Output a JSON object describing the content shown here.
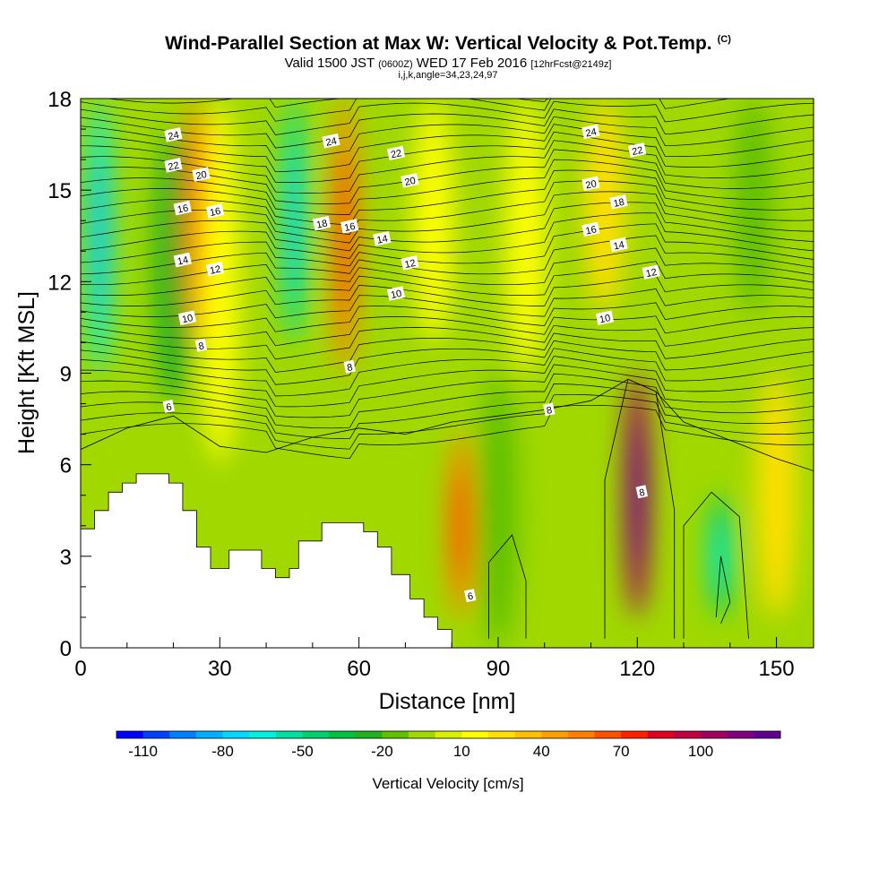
{
  "title": {
    "main": "Wind-Parallel Section at Max W: Vertical Velocity & Pot.Temp.",
    "corner": "(C)",
    "valid_prefix": "Valid 1500 JST",
    "utc": "(0600Z)",
    "valid_date": "WED 17 Feb 2016",
    "forecast": "[12hrFcst@2149z]",
    "indices": "i,j,k,angle=34,23,24,97"
  },
  "chart_data": {
    "type": "heatmap",
    "xlabel": "Distance [nm]",
    "ylabel": "Height [Kft MSL]",
    "xlim": [
      0,
      158
    ],
    "ylim": [
      0,
      18
    ],
    "xticks": [
      0,
      30,
      60,
      90,
      120,
      150
    ],
    "yticks": [
      0,
      3,
      6,
      9,
      12,
      15,
      18
    ],
    "colorbar": {
      "label": "Vertical Velocity [cm/s]",
      "tick_labels": [
        "-110",
        "-80",
        "-50",
        "-20",
        "10",
        "40",
        "70",
        "100"
      ],
      "colors": [
        "#0000ff",
        "#0040ff",
        "#0080ff",
        "#00b0ff",
        "#00d8ff",
        "#00f0e0",
        "#00e0a0",
        "#00d070",
        "#00c040",
        "#20b020",
        "#60c000",
        "#a0d800",
        "#d8f000",
        "#ffff00",
        "#ffe000",
        "#ffc000",
        "#ffa000",
        "#ff8000",
        "#ff5000",
        "#ff2000",
        "#e00020",
        "#c00040",
        "#a00060",
        "#800080",
        "#600090"
      ]
    },
    "w_features": [
      {
        "x": 4,
        "top": 18,
        "bottom": 9,
        "w": -70
      },
      {
        "x": 20,
        "top": 17,
        "bottom": 8,
        "w": -30
      },
      {
        "x": 25,
        "top": 18,
        "bottom": 10,
        "w": 50
      },
      {
        "x": 30,
        "top": 18,
        "bottom": 6,
        "w": 10
      },
      {
        "x": 46,
        "top": 18,
        "bottom": 10,
        "w": -60
      },
      {
        "x": 57,
        "top": 18,
        "bottom": 9,
        "w": 50
      },
      {
        "x": 76,
        "top": 18,
        "bottom": 10,
        "w": 10
      },
      {
        "x": 82,
        "top": 7,
        "bottom": 1,
        "w": 50
      },
      {
        "x": 90,
        "top": 9,
        "bottom": 0,
        "w": -20
      },
      {
        "x": 96,
        "top": 18,
        "bottom": 9,
        "w": 10
      },
      {
        "x": 120,
        "top": 9,
        "bottom": 1,
        "w": 100
      },
      {
        "x": 113,
        "top": 18,
        "bottom": 11,
        "w": 20
      },
      {
        "x": 138,
        "top": 5,
        "bottom": 1,
        "w": -50
      },
      {
        "x": 145,
        "top": 18,
        "bottom": 11,
        "w": -20
      },
      {
        "x": 150,
        "top": 9,
        "bottom": 1,
        "w": 20
      }
    ],
    "terrain": [
      [
        0,
        3.9
      ],
      [
        3,
        3.9
      ],
      [
        3,
        4.5
      ],
      [
        6,
        4.5
      ],
      [
        6,
        5.1
      ],
      [
        9,
        5.1
      ],
      [
        9,
        5.4
      ],
      [
        12,
        5.4
      ],
      [
        12,
        5.7
      ],
      [
        19,
        5.7
      ],
      [
        19,
        5.4
      ],
      [
        22,
        5.4
      ],
      [
        22,
        4.5
      ],
      [
        25,
        4.5
      ],
      [
        25,
        3.3
      ],
      [
        28,
        3.3
      ],
      [
        28,
        2.6
      ],
      [
        32,
        2.6
      ],
      [
        32,
        3.2
      ],
      [
        39,
        3.2
      ],
      [
        39,
        2.6
      ],
      [
        42,
        2.6
      ],
      [
        42,
        2.3
      ],
      [
        45,
        2.3
      ],
      [
        45,
        2.6
      ],
      [
        47,
        2.6
      ],
      [
        47,
        3.5
      ],
      [
        52,
        3.5
      ],
      [
        52,
        4.1
      ],
      [
        61,
        4.1
      ],
      [
        61,
        3.8
      ],
      [
        64,
        3.8
      ],
      [
        64,
        3.3
      ],
      [
        67,
        3.3
      ],
      [
        67,
        2.4
      ],
      [
        71,
        2.4
      ],
      [
        71,
        1.6
      ],
      [
        74,
        1.6
      ],
      [
        74,
        1.0
      ],
      [
        77,
        1.0
      ],
      [
        77,
        0.6
      ],
      [
        80,
        0.6
      ],
      [
        80,
        0
      ],
      [
        158,
        0
      ]
    ],
    "theta_labels": [
      {
        "x": 20,
        "y": 16.8,
        "text": "24"
      },
      {
        "x": 20,
        "y": 15.8,
        "text": "22"
      },
      {
        "x": 26,
        "y": 15.5,
        "text": "20"
      },
      {
        "x": 22,
        "y": 14.4,
        "text": "16"
      },
      {
        "x": 29,
        "y": 14.3,
        "text": "16"
      },
      {
        "x": 22,
        "y": 12.7,
        "text": "14"
      },
      {
        "x": 29,
        "y": 12.4,
        "text": "12"
      },
      {
        "x": 23,
        "y": 10.8,
        "text": "10"
      },
      {
        "x": 26,
        "y": 9.9,
        "text": "8"
      },
      {
        "x": 19,
        "y": 7.9,
        "text": "6"
      },
      {
        "x": 54,
        "y": 16.6,
        "text": "24"
      },
      {
        "x": 68,
        "y": 16.2,
        "text": "22"
      },
      {
        "x": 71,
        "y": 15.3,
        "text": "20"
      },
      {
        "x": 52,
        "y": 13.9,
        "text": "18"
      },
      {
        "x": 58,
        "y": 13.8,
        "text": "16"
      },
      {
        "x": 65,
        "y": 13.4,
        "text": "14"
      },
      {
        "x": 71,
        "y": 12.6,
        "text": "12"
      },
      {
        "x": 68,
        "y": 11.6,
        "text": "10"
      },
      {
        "x": 58,
        "y": 9.2,
        "text": "8"
      },
      {
        "x": 110,
        "y": 16.9,
        "text": "24"
      },
      {
        "x": 120,
        "y": 16.3,
        "text": "22"
      },
      {
        "x": 110,
        "y": 15.2,
        "text": "20"
      },
      {
        "x": 116,
        "y": 14.6,
        "text": "18"
      },
      {
        "x": 110,
        "y": 13.7,
        "text": "16"
      },
      {
        "x": 116,
        "y": 13.2,
        "text": "14"
      },
      {
        "x": 123,
        "y": 12.3,
        "text": "12"
      },
      {
        "x": 113,
        "y": 10.8,
        "text": "10"
      },
      {
        "x": 101,
        "y": 7.8,
        "text": "8"
      },
      {
        "x": 121,
        "y": 5.1,
        "text": "8"
      },
      {
        "x": 84,
        "y": 1.7,
        "text": "6"
      }
    ],
    "theta_levels": [
      6,
      8,
      10,
      12,
      14,
      16,
      18,
      20,
      22,
      24
    ]
  }
}
